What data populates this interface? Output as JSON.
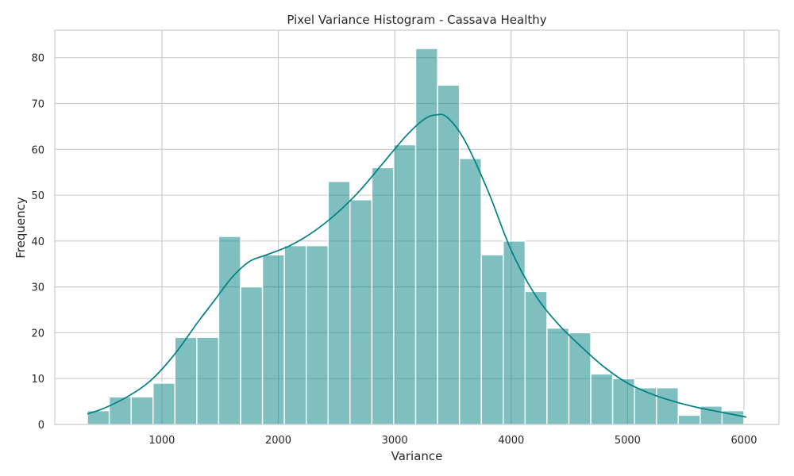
{
  "chart_data": {
    "type": "bar",
    "title": "Pixel Variance Histogram - Cassava Healthy",
    "xlabel": "Variance",
    "ylabel": "Frequency",
    "xlim": [
      80,
      6300
    ],
    "ylim": [
      0,
      86
    ],
    "xticks": [
      1000,
      2000,
      3000,
      4000,
      5000,
      6000
    ],
    "yticks": [
      0,
      10,
      20,
      30,
      40,
      50,
      60,
      70,
      80
    ],
    "grid": true,
    "bar_color": "#008080",
    "bar_opacity": 0.5,
    "kde_color": "#008080",
    "bins": {
      "start": 360,
      "width": 188,
      "counts": [
        3,
        6,
        6,
        9,
        19,
        19,
        41,
        30,
        37,
        39,
        39,
        53,
        49,
        56,
        61,
        82,
        74,
        58,
        37,
        40,
        29,
        21,
        20,
        11,
        10,
        8,
        8,
        2,
        4,
        3
      ]
    },
    "kde": {
      "x": [
        360,
        500,
        700,
        900,
        1100,
        1300,
        1450,
        1600,
        1750,
        1900,
        2100,
        2300,
        2500,
        2700,
        2900,
        3100,
        3250,
        3350,
        3450,
        3600,
        3800,
        4000,
        4200,
        4400,
        4600,
        4800,
        5000,
        5200,
        5400,
        5600,
        5800,
        6020
      ],
      "y": [
        2.3,
        3.5,
        6.0,
        9.5,
        15.0,
        22.0,
        27.0,
        32.0,
        35.5,
        37.0,
        39.0,
        42.0,
        46.0,
        51.0,
        57.0,
        63.0,
        66.5,
        67.5,
        67.0,
        62.0,
        51.0,
        38.0,
        28.5,
        22.0,
        17.0,
        12.5,
        9.0,
        6.7,
        5.0,
        3.7,
        2.7,
        1.6
      ]
    }
  }
}
